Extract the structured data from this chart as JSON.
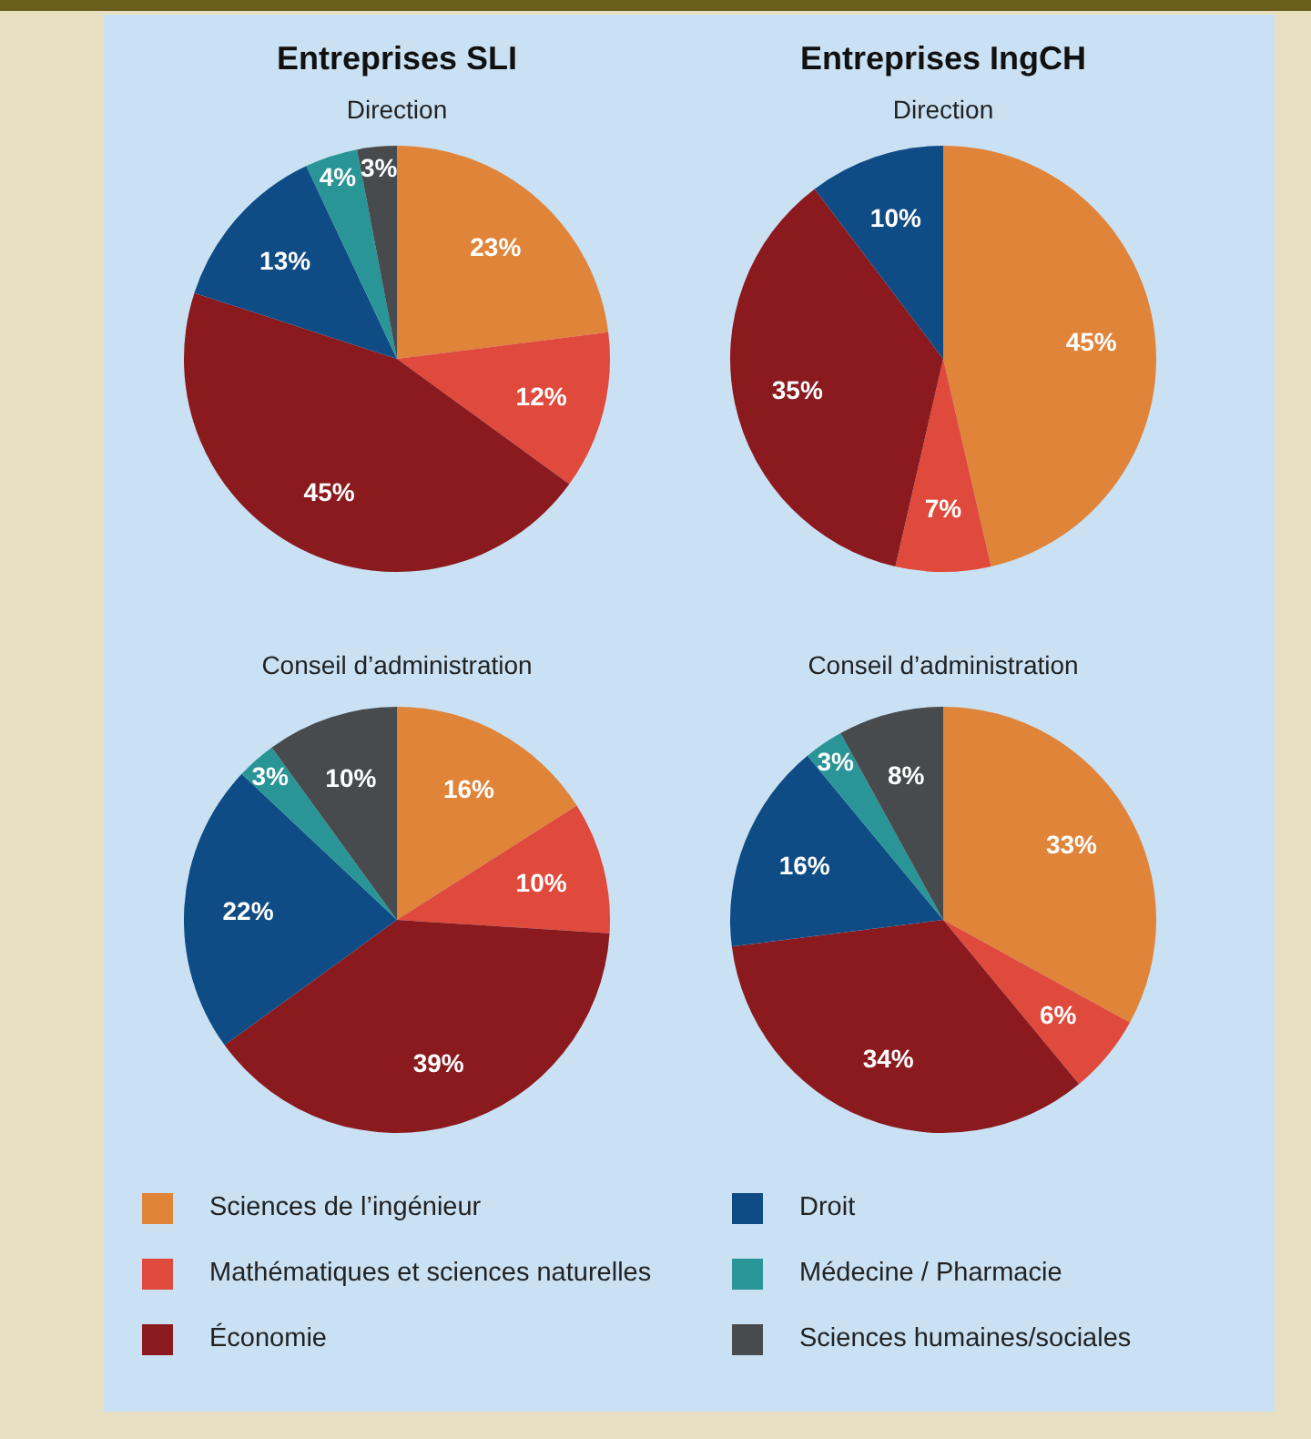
{
  "chart_data": [
    {
      "type": "pie",
      "title": "Entreprises SLI",
      "subtitle": "Direction",
      "categories": [
        "Sciences de l’ingénieur",
        "Mathématiques et sciences naturelles",
        "Économie",
        "Droit",
        "Médecine / Pharmacie",
        "Sciences humaines/sociales"
      ],
      "values": [
        23,
        12,
        45,
        13,
        4,
        3
      ],
      "value_labels": [
        "23%",
        "12%",
        "45%",
        "13%",
        "4%",
        "3%"
      ],
      "colors": [
        "#e0843a",
        "#e04a3c",
        "#8b1a1f",
        "#0f4c85",
        "#2a9596",
        "#474b4e"
      ],
      "legend": "bottom"
    },
    {
      "type": "pie",
      "title": "Entreprises IngCH",
      "subtitle": "Direction",
      "categories": [
        null,
        null,
        null,
        null
      ],
      "values": [
        45,
        7,
        35,
        10
      ],
      "value_labels": [
        "45%",
        "7%",
        "35%",
        "10%"
      ],
      "colors": [
        "#e0843a",
        "#e04a3c",
        "#8b1a1f",
        "#0f4c85"
      ]
    },
    {
      "type": "pie",
      "subtitle": "Conseil d’administration",
      "categories": [
        null,
        null,
        null,
        null,
        null,
        null
      ],
      "values": [
        16,
        10,
        39,
        22,
        3,
        10
      ],
      "value_labels": [
        "16%",
        "10%",
        "39%",
        "22%",
        "3%",
        "10%"
      ],
      "colors": [
        "#e0843a",
        "#e04a3c",
        "#8b1a1f",
        "#0f4c85",
        "#2a9596",
        "#474b4e"
      ]
    },
    {
      "type": "pie",
      "subtitle": "Conseil d’administration",
      "categories": [
        null,
        null,
        null,
        null,
        null,
        null
      ],
      "values": [
        33,
        6,
        34,
        16,
        3,
        8
      ],
      "value_labels": [
        "33%",
        "6%",
        "34%",
        "16%",
        "3%",
        "8%"
      ],
      "colors": [
        "#e0843a",
        "#e04a3c",
        "#8b1a1f",
        "#0f4c85",
        "#2a9596",
        "#474b4e"
      ]
    }
  ]
}
